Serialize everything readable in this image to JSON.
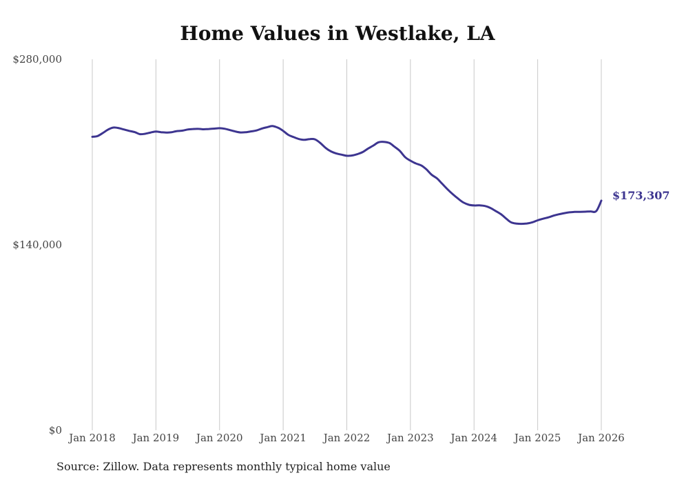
{
  "chart_data": {
    "type": "line",
    "title": "Home Values in Westlake, LA",
    "xlabel": "",
    "ylabel": "",
    "ylim": [
      0,
      280000
    ],
    "y_ticks": [
      0,
      140000,
      280000
    ],
    "y_tick_labels": [
      "$0",
      "$140,000",
      "$280,000"
    ],
    "x_ticks": [
      2018,
      2019,
      2020,
      2021,
      2022,
      2023,
      2024,
      2025,
      2026
    ],
    "x_tick_labels": [
      "Jan 2018",
      "Jan 2019",
      "Jan 2020",
      "Jan 2021",
      "Jan 2022",
      "Jan 2023",
      "Jan 2024",
      "Jan 2025",
      "Jan 2026"
    ],
    "grid": "vertical",
    "series": [
      {
        "name": "Typical home value",
        "color": "#3d3590",
        "end_label": "$173,307",
        "x": [
          2018.0,
          2018.08,
          2018.17,
          2018.25,
          2018.33,
          2018.42,
          2018.5,
          2018.58,
          2018.67,
          2018.75,
          2018.83,
          2018.92,
          2019.0,
          2019.08,
          2019.17,
          2019.25,
          2019.33,
          2019.42,
          2019.5,
          2019.58,
          2019.67,
          2019.75,
          2019.83,
          2019.92,
          2020.0,
          2020.08,
          2020.17,
          2020.25,
          2020.33,
          2020.42,
          2020.5,
          2020.58,
          2020.67,
          2020.75,
          2020.83,
          2020.92,
          2021.0,
          2021.08,
          2021.17,
          2021.25,
          2021.33,
          2021.42,
          2021.5,
          2021.58,
          2021.67,
          2021.75,
          2021.83,
          2021.92,
          2022.0,
          2022.08,
          2022.17,
          2022.25,
          2022.33,
          2022.42,
          2022.5,
          2022.58,
          2022.67,
          2022.75,
          2022.83,
          2022.92,
          2023.0,
          2023.08,
          2023.17,
          2023.25,
          2023.33,
          2023.42,
          2023.5,
          2023.58,
          2023.67,
          2023.75,
          2023.83,
          2023.92,
          2024.0,
          2024.08,
          2024.17,
          2024.25,
          2024.33,
          2024.42,
          2024.5,
          2024.58,
          2024.67,
          2024.75,
          2024.83,
          2024.92,
          2025.0,
          2025.08,
          2025.17,
          2025.25,
          2025.33,
          2025.42,
          2025.5,
          2025.58,
          2025.67,
          2025.75,
          2025.83,
          2025.92,
          2026.0
        ],
        "values": [
          221500,
          222000,
          224500,
          227000,
          228500,
          228000,
          227000,
          226000,
          225000,
          223500,
          223800,
          224800,
          225500,
          225000,
          224700,
          225000,
          225800,
          226200,
          227000,
          227400,
          227500,
          227200,
          227400,
          227700,
          228000,
          227600,
          226500,
          225500,
          224800,
          225000,
          225600,
          226300,
          227800,
          228800,
          229600,
          228300,
          226000,
          223000,
          221200,
          219800,
          219200,
          219800,
          219600,
          217000,
          213000,
          210500,
          209000,
          208000,
          207200,
          207400,
          208500,
          210000,
          212500,
          215000,
          217400,
          217700,
          216800,
          214000,
          211000,
          206000,
          203500,
          201500,
          199900,
          197000,
          193000,
          190000,
          186000,
          182000,
          178000,
          174800,
          172000,
          170200,
          169700,
          169800,
          169300,
          168000,
          165800,
          163200,
          160000,
          157000,
          156000,
          155800,
          156100,
          157000,
          158500,
          159600,
          160700,
          162000,
          163000,
          163900,
          164500,
          164800,
          164900,
          165000,
          165200,
          165400,
          173307
        ]
      }
    ]
  },
  "footer": {
    "source": "Source: Zillow. Data represents monthly typical home value"
  }
}
